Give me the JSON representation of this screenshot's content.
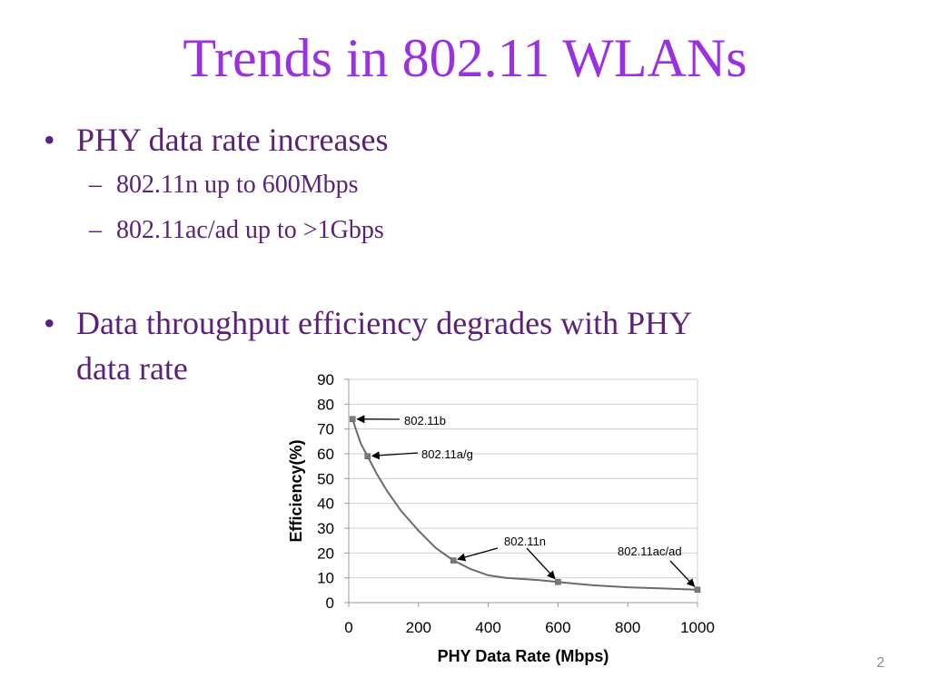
{
  "slide": {
    "title": "Trends in 802.11 WLANs",
    "page_number": "2"
  },
  "colors": {
    "title": "#9b30e0",
    "body": "#5c2278",
    "curve": "#6b6b6b",
    "axis": "#999999",
    "grid": "#cfcfcf",
    "text": "#000000",
    "page_number": "#8c8c8c"
  },
  "bullets": [
    {
      "text": "PHY data rate increases",
      "subitems": [
        "802.11n up to 600Mbps",
        "802.11ac/ad up to >1Gbps"
      ]
    },
    {
      "text": "Data throughput efficiency degrades with PHY",
      "continuation": "data rate",
      "subitems": []
    }
  ],
  "chart_data": {
    "type": "line",
    "title": "",
    "xlabel": "PHY Data Rate (Mbps)",
    "ylabel": "Efficiency(%)",
    "xlim": [
      0,
      1000
    ],
    "ylim": [
      0,
      90
    ],
    "x_ticks": [
      0,
      200,
      400,
      600,
      800,
      1000
    ],
    "y_ticks": [
      0,
      10,
      20,
      30,
      40,
      50,
      60,
      70,
      80,
      90
    ],
    "grid": "horizontal",
    "curve": {
      "x": [
        11,
        20,
        35,
        54,
        80,
        110,
        150,
        200,
        250,
        300,
        350,
        400,
        450,
        500,
        550,
        600,
        700,
        800,
        900,
        1000
      ],
      "y": [
        74,
        70,
        64,
        59,
        52,
        45,
        37,
        29,
        22,
        17,
        13.5,
        11,
        10,
        9.5,
        9,
        8.3,
        7,
        6.2,
        5.7,
        5.2
      ]
    },
    "points": [
      {
        "label": "802.11b",
        "x": 11,
        "y": 74
      },
      {
        "label": "802.11a/g",
        "x": 54,
        "y": 59
      },
      {
        "label": "802.11n",
        "x": 300,
        "y": 17
      },
      {
        "label": "802.11n",
        "x": 600,
        "y": 8.3
      },
      {
        "label": "802.11ac/ad",
        "x": 1000,
        "y": 5.2
      }
    ],
    "annotations": [
      {
        "label": "802.11b",
        "points_to": [
          0
        ]
      },
      {
        "label": "802.11a/g",
        "points_to": [
          1
        ]
      },
      {
        "label": "802.11n",
        "points_to": [
          2,
          3
        ]
      },
      {
        "label": "802.11ac/ad",
        "points_to": [
          4
        ]
      }
    ]
  }
}
